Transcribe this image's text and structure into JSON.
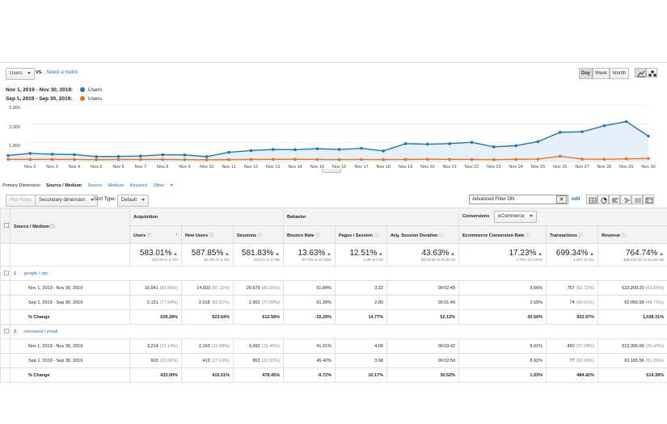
{
  "toolbar": {
    "metric_select": "Users",
    "vs_label": "VS.",
    "select_metric": "Select a metric",
    "granularity": [
      "Day",
      "Week",
      "Month"
    ],
    "active_granularity": "Day"
  },
  "legend": [
    {
      "range": "Nov 1, 2019 - Nov 30, 2019:",
      "metric": "Users",
      "color": "#1f77b4"
    },
    {
      "range": "Sep 1, 2019 - Sep 30, 2019:",
      "metric": "Users",
      "color": "#e8731c"
    }
  ],
  "chart_data": {
    "type": "line",
    "yticks": [
      "3,000",
      "2,000",
      "1,000"
    ],
    "ylim": [
      0,
      3000
    ],
    "x": [
      "Nov 1",
      "Nov 2",
      "Nov 3",
      "Nov 4",
      "Nov 5",
      "Nov 6",
      "Nov 7",
      "Nov 8",
      "Nov 9",
      "Nov 10",
      "Nov 11",
      "Nov 12",
      "Nov 13",
      "Nov 14",
      "Nov 15",
      "Nov 16",
      "Nov 17",
      "Nov 18",
      "Nov 19",
      "Nov 20",
      "Nov 21",
      "Nov 22",
      "Nov 23",
      "Nov 24",
      "Nov 25",
      "Nov 26",
      "Nov 27",
      "Nov 28",
      "Nov 29",
      "Nov 30"
    ],
    "xticks": [
      "Nov 2",
      "Nov 3",
      "Nov 4",
      "Nov 5",
      "Nov 6",
      "Nov 7",
      "Nov 8",
      "Nov 9",
      "Nov 10",
      "Nov 11",
      "Nov 12",
      "Nov 13",
      "Nov 14",
      "Nov 15",
      "Nov 16",
      "Nov 17",
      "Nov 18",
      "Nov 19",
      "Nov 20",
      "Nov 21",
      "Nov 22",
      "Nov 23",
      "Nov 24",
      "Nov 25",
      "Nov 26",
      "Nov 27",
      "Nov 28",
      "Nov 29",
      "Nov 30"
    ],
    "series": [
      {
        "values": [
          320,
          430,
          390,
          370,
          260,
          270,
          290,
          360,
          350,
          260,
          490,
          580,
          640,
          630,
          680,
          640,
          700,
          560,
          950,
          920,
          950,
          1020,
          780,
          840,
          1060,
          1550,
          1580,
          1900,
          2120,
          1350
        ],
        "color": "#1f77b4"
      },
      {
        "values": [
          120,
          110,
          115,
          110,
          100,
          105,
          110,
          110,
          100,
          95,
          100,
          110,
          115,
          120,
          110,
          105,
          110,
          105,
          110,
          120,
          115,
          110,
          100,
          115,
          130,
          280,
          130,
          120,
          140,
          160
        ],
        "color": "#e8731c"
      }
    ]
  },
  "primary_dimension": {
    "label": "Primary Dimension:",
    "active": "Source / Medium",
    "options": [
      "Source",
      "Medium",
      "Keyword",
      "Other"
    ]
  },
  "controls": {
    "plot_rows": "Plot Rows",
    "secondary_dimension": "Secondary dimension",
    "sort_type_label": "Sort Type:",
    "sort_type": "Default",
    "filter": "Advanced Filter ON",
    "edit": "edit"
  },
  "table": {
    "dimension_header": "Source / Medium",
    "group_acquisition": "Acquisition",
    "group_behavior": "Behavior",
    "group_conversions": "Conversions",
    "conversions_select": "eCommerce",
    "columns": [
      "Users",
      "New Users",
      "Sessions",
      "Bounce Rate",
      "Pages / Session",
      "Avg. Session Duration",
      "Ecommerce Conversion Rate",
      "Transactions",
      "Revenue"
    ],
    "totals": [
      {
        "big": "583.01%",
        "sub": "18,578 vs 2,720"
      },
      {
        "big": "587.85%",
        "sub": "16,763 vs 2,437"
      },
      {
        "big": "581.83%",
        "sub": "25,671 vs 3,765"
      },
      {
        "big": "13.63%",
        "sub": "49.74% vs 57.58%"
      },
      {
        "big": "12.51%",
        "sub": "3.38 vs 3.00"
      },
      {
        "big": "43.63%",
        "sub": "00:02:56 vs 00:02:03"
      },
      {
        "big": "17.23%",
        "sub": "4.70% vs 4.01%"
      },
      {
        "big": "699.34%",
        "sub": "1,207 vs 151"
      },
      {
        "big": "764.74%",
        "sub": "€36,514.20 vs €4,222.55"
      }
    ],
    "groups": [
      {
        "index": "1.",
        "name": "google / cpc",
        "rows": [
          {
            "label": "Nov 1, 2019 - Nov 30, 2019",
            "cells": [
              [
                "15,541",
                "(82.86%)"
              ],
              [
                "14,603",
                "(87.11%)"
              ],
              [
                "20,679",
                "(80.55%)"
              ],
              [
                "51.84%",
                ""
              ],
              [
                "3.22",
                ""
              ],
              [
                "00:02:45",
                ""
              ],
              [
                "3.66%",
                ""
              ],
              [
                "757",
                "(62.72%)"
              ],
              [
                "€23,209.20",
                "(63.56%)"
              ]
            ]
          },
          {
            "label": "Sep 1, 2019 - Sep 30, 2019",
            "cells": [
              [
                "2,131",
                "(77.94%)"
              ],
              [
                "2,018",
                "(82.81%)"
              ],
              [
                "2,902",
                "(77.08%)"
              ],
              [
                "61.20%",
                ""
              ],
              [
                "2.80",
                ""
              ],
              [
                "00:01:49",
                ""
              ],
              [
                "2.55%",
                ""
              ],
              [
                "74",
                "(49.01%)"
              ],
              [
                "€2,056.99",
                "(48.71%)"
              ]
            ]
          },
          {
            "label": "% Change",
            "pct": true,
            "cells": [
              [
                "629.28%",
                ""
              ],
              [
                "623.64%",
                ""
              ],
              [
                "612.58%",
                ""
              ],
              [
                "-15.29%",
                ""
              ],
              [
                "14.77%",
                ""
              ],
              [
                "52.12%",
                ""
              ],
              [
                "43.56%",
                ""
              ],
              [
                "922.97%",
                ""
              ],
              [
                "1,028.31%",
                ""
              ]
            ]
          }
        ]
      },
      {
        "index": "2.",
        "name": "omnisend / email",
        "rows": [
          {
            "label": "Nov 1, 2019 - Nov 30, 2019",
            "cells": [
              [
                "3,214",
                "(17.14%)"
              ],
              [
                "2,160",
                "(12.89%)"
              ],
              [
                "4,992",
                "(19.45%)"
              ],
              [
                "41.01%",
                ""
              ],
              [
                "4.06",
                ""
              ],
              [
                "00:03:42",
                ""
              ],
              [
                "9.01%",
                ""
              ],
              [
                "450",
                "(37.28%)"
              ],
              [
                "€13,305.00",
                "(36.44%)"
              ]
            ]
          },
          {
            "label": "Sep 1, 2019 - Sep 30, 2019",
            "cells": [
              [
                "603",
                "(22.06%)"
              ],
              [
                "419",
                "(17.19%)"
              ],
              [
                "863",
                "(22.92%)"
              ],
              [
                "45.42%",
                ""
              ],
              [
                "3.68",
                ""
              ],
              [
                "00:02:50",
                ""
              ],
              [
                "8.92%",
                ""
              ],
              [
                "77",
                "(50.99%)"
              ],
              [
                "€2,165.56",
                "(51.29%)"
              ]
            ]
          },
          {
            "label": "% Change",
            "pct": true,
            "cells": [
              [
                "433.00%",
                ""
              ],
              [
                "415.51%",
                ""
              ],
              [
                "478.45%",
                ""
              ],
              [
                "-9.72%",
                ""
              ],
              [
                "10.17%",
                ""
              ],
              [
                "30.52%",
                ""
              ],
              [
                "1.03%",
                ""
              ],
              [
                "484.42%",
                ""
              ],
              [
                "514.39%",
                ""
              ]
            ]
          }
        ]
      }
    ]
  }
}
